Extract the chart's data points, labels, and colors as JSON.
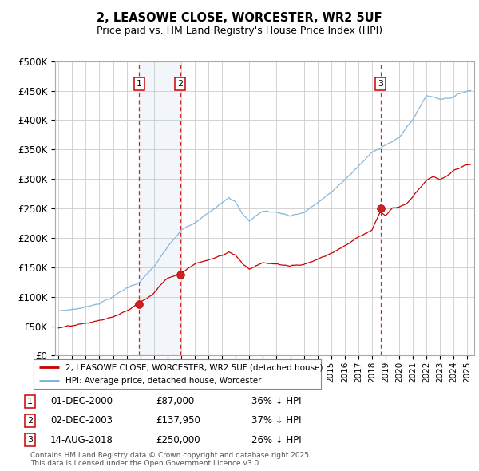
{
  "title": "2, LEASOWE CLOSE, WORCESTER, WR2 5UF",
  "subtitle": "Price paid vs. HM Land Registry's House Price Index (HPI)",
  "background_color": "#ffffff",
  "chart_bg_color": "#e8f0f8",
  "grid_color": "#cccccc",
  "hpi_color": "#7ab0d8",
  "price_color": "#cc0000",
  "sale_dates": [
    2000.917,
    2003.917,
    2018.619
  ],
  "sale_prices": [
    87000,
    137950,
    250000
  ],
  "sale_labels": [
    "1",
    "2",
    "3"
  ],
  "legend_entries": [
    "2, LEASOWE CLOSE, WORCESTER, WR2 5UF (detached house)",
    "HPI: Average price, detached house, Worcester"
  ],
  "table_data": [
    [
      "1",
      "01-DEC-2000",
      "£87,000",
      "36% ↓ HPI"
    ],
    [
      "2",
      "02-DEC-2003",
      "£137,950",
      "37% ↓ HPI"
    ],
    [
      "3",
      "14-AUG-2018",
      "£250,000",
      "26% ↓ HPI"
    ]
  ],
  "footnote": "Contains HM Land Registry data © Crown copyright and database right 2025.\nThis data is licensed under the Open Government Licence v3.0.",
  "xmin": 1994.75,
  "xmax": 2025.5,
  "ylim": [
    0,
    500000
  ],
  "yticks": [
    0,
    50000,
    100000,
    150000,
    200000,
    250000,
    300000,
    350000,
    400000,
    450000,
    500000
  ]
}
